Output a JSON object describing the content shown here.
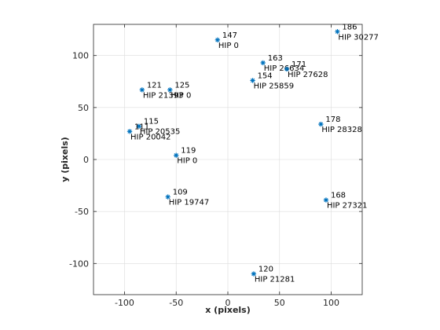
{
  "chart_data": {
    "type": "scatter",
    "xlabel": "x (pixels)",
    "ylabel": "y (pixels)",
    "xlim": [
      -130,
      130
    ],
    "ylim": [
      -130,
      130
    ],
    "xticks": [
      -100,
      -50,
      0,
      50,
      100
    ],
    "yticks": [
      -100,
      -50,
      0,
      50,
      100
    ],
    "grid": true,
    "marker": "asterisk",
    "marker_color": "#0072BD",
    "points": [
      {
        "x": 106,
        "y": 123,
        "id": "186",
        "hip": "HIP 30277"
      },
      {
        "x": -10,
        "y": 115,
        "id": "147",
        "hip": "HIP 0"
      },
      {
        "x": 34,
        "y": 93,
        "id": "163",
        "hip": "HIP 26634"
      },
      {
        "x": 57,
        "y": 87,
        "id": "171",
        "hip": "HIP 27628"
      },
      {
        "x": 24,
        "y": 76,
        "id": "154",
        "hip": "HIP 25859"
      },
      {
        "x": -83,
        "y": 67,
        "id": "121",
        "hip": "HIP 21393"
      },
      {
        "x": -56,
        "y": 67,
        "id": "125",
        "hip": "HIP 0"
      },
      {
        "x": -86,
        "y": 32,
        "id": "115",
        "hip": "HIP 20535"
      },
      {
        "x": -95,
        "y": 27,
        "id": "111",
        "hip": "HIP 20042"
      },
      {
        "x": 90,
        "y": 34,
        "id": "178",
        "hip": "HIP 28328"
      },
      {
        "x": -50,
        "y": 4,
        "id": "119",
        "hip": "HIP 0"
      },
      {
        "x": -58,
        "y": -36,
        "id": "109",
        "hip": "HIP 19747"
      },
      {
        "x": 95,
        "y": -39,
        "id": "168",
        "hip": "HIP 27321"
      },
      {
        "x": 25,
        "y": -110,
        "id": "120",
        "hip": "HIP 21281"
      }
    ]
  }
}
